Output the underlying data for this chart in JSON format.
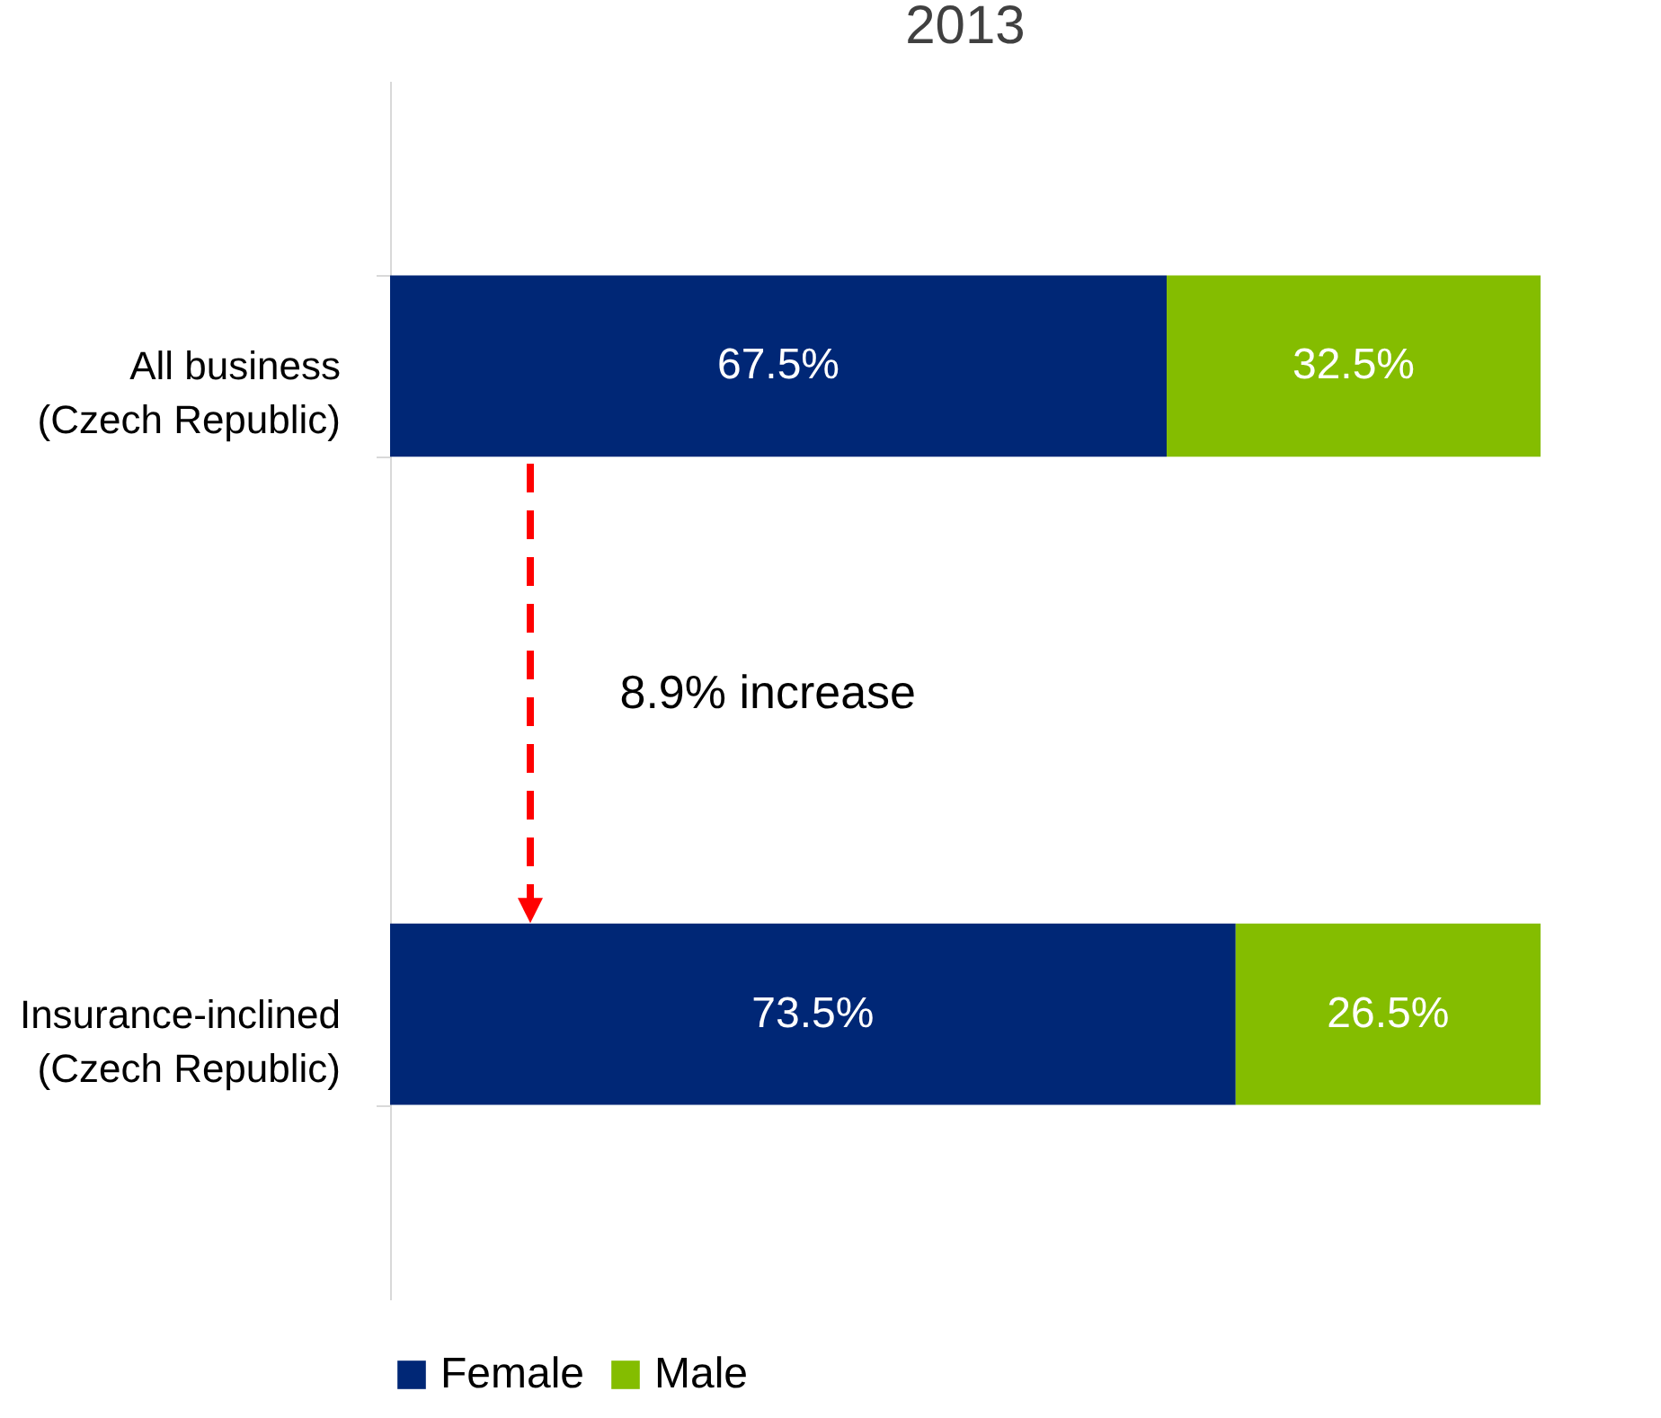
{
  "chart_data": {
    "type": "bar",
    "orientation": "horizontal",
    "stacked": true,
    "title": "2013",
    "categories": [
      "All business (Czech Republic)",
      "Insurance-inclined (Czech Republic)"
    ],
    "series": [
      {
        "name": "Female",
        "color": "#002776",
        "values": [
          67.5,
          73.5
        ],
        "value_labels": [
          "67.5%",
          "73.5%"
        ]
      },
      {
        "name": "Male",
        "color": "#84bd00",
        "values": [
          32.5,
          26.5
        ],
        "value_labels": [
          "32.5%",
          "26.5%"
        ]
      }
    ],
    "xlim": [
      0,
      100
    ],
    "tick_labels": "y",
    "grid": false,
    "legend": "bottom",
    "annotations": [
      "8.9% increase"
    ]
  }
}
